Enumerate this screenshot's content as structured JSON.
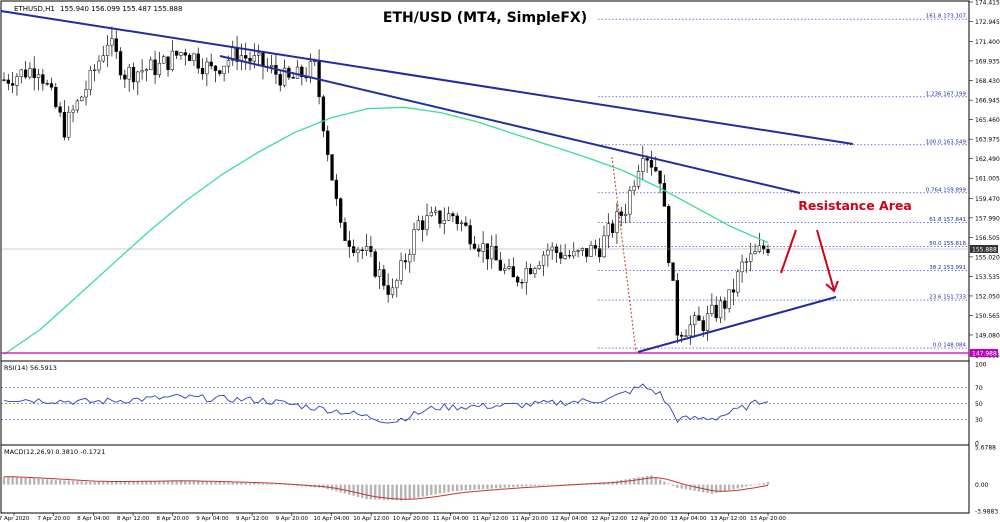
{
  "header": {
    "symbol_info": "ETHUSD,H1",
    "ohlc": "155.940 156.099 155.487 155.888"
  },
  "chart_data": [
    {
      "type": "candlestick",
      "title": "ETH/USD (MT4, SimpleFX)",
      "ylim": [
        147.555,
        174.415
      ],
      "y_ticks": [
        174.415,
        172.945,
        171.4,
        169.935,
        168.43,
        166.945,
        165.46,
        163.975,
        162.49,
        161.005,
        159.47,
        157.99,
        156.505,
        155.02,
        153.535,
        152.05,
        150.565,
        149.08,
        147.555
      ],
      "x_tick_labels": [
        "7 Apr 2020",
        "7 Apr 20:00",
        "8 Apr 04:00",
        "8 Apr 12:00",
        "8 Apr 20:00",
        "9 Apr 04:00",
        "9 Apr 12:00",
        "9 Apr 20:00",
        "10 Apr 04:00",
        "10 Apr 12:00",
        "10 Apr 20:00",
        "11 Apr 04:00",
        "11 Apr 12:00",
        "11 Apr 20:00",
        "12 Apr 04:00",
        "12 Apr 12:00",
        "12 Apr 20:00",
        "13 Apr 04:00",
        "13 Apr 12:00",
        "13 Apr 20:00"
      ],
      "current_price": 155.888,
      "price_line_label": "147.988",
      "ma_series_values": [
        147.6,
        149.5,
        152.0,
        154.5,
        157.0,
        159.3,
        161.3,
        163.0,
        164.5,
        165.6,
        166.3,
        166.4,
        166.0,
        165.3,
        164.4,
        163.5,
        162.6,
        161.6,
        160.3,
        158.8,
        157.3,
        156.1
      ],
      "fibonacci_levels": [
        {
          "label": "161.8",
          "price": 173.107,
          "price_text": "173.107"
        },
        {
          "label": "1.236",
          "price": 167.199,
          "price_text": "167.199"
        },
        {
          "label": "100.0",
          "price": 163.549,
          "price_text": "163.549"
        },
        {
          "label": "0.764",
          "price": 159.899,
          "price_text": "159.899"
        },
        {
          "label": "61.8",
          "price": 157.641,
          "price_text": "157.641"
        },
        {
          "label": "50.0",
          "price": 155.818,
          "price_text": "155.818"
        },
        {
          "label": "38.2",
          "price": 153.991,
          "price_text": "153.991"
        },
        {
          "label": "23.6",
          "price": 151.733,
          "price_text": "151.733"
        },
        {
          "label": "0.0",
          "price": 148.084,
          "price_text": "148.084"
        }
      ],
      "annotation": "Resistance Area",
      "trendlines": 3
    },
    {
      "type": "line",
      "title": "RSI(14) 56.5913",
      "ylim": [
        0,
        100
      ],
      "y_ticks": [
        100,
        70,
        50,
        30,
        0
      ]
    },
    {
      "type": "histogram+line",
      "title": "MACD(12,26,9) 0.3810 -0.1721",
      "ylim": [
        -3.9883,
        5.6788
      ],
      "y_ticks": [
        5.6788,
        0.0,
        -3.9883
      ]
    }
  ],
  "colors": {
    "trendline": "#1f2d9e",
    "moving_average": "#3ddc97",
    "annotation": "#d0021b",
    "fib_line": "#1f2d9e",
    "rsi_line": "#2b3fb3",
    "macd_histogram": "#b5b5b5",
    "macd_signal": "#c0392b",
    "price_line": "#c000c0"
  }
}
